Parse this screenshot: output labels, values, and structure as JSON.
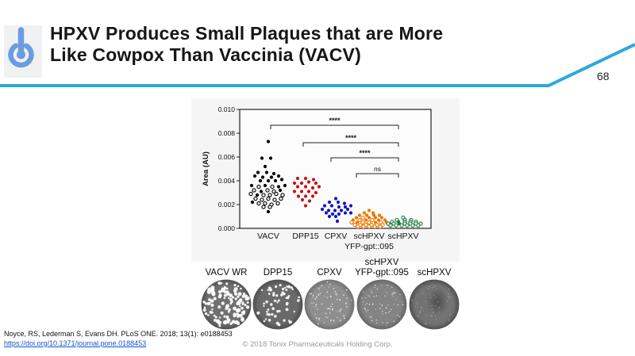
{
  "slide": {
    "title_line1": "HPXV Produces Small Plaques that are More",
    "title_line2": "Like Cowpox Than Vaccinia (VACV)",
    "page_number": "68",
    "accent_color": "#2fa8dc",
    "logo_color": "#6a9ddf"
  },
  "footer": {
    "citation": "Noyce, RS, Lederman S, Evans DH. PLoS ONE. 2018; 13(1): e0188453",
    "link": "https://doi.org/10.1371/journal.pone.0188453",
    "copyright": "© 2018 Tonix Pharmaceuticals Holding Corp."
  },
  "chart_data": {
    "type": "scatter",
    "title": "",
    "xlabel": "",
    "ylabel": "Area (AU)",
    "ylim": [
      0,
      0.01
    ],
    "ytick_step": 0.002,
    "yticks": [
      "0.000",
      "0.002",
      "0.004",
      "0.006",
      "0.008",
      "0.010"
    ],
    "categories": [
      "VACV",
      "DPP15",
      "CPXV",
      "scHPXV",
      "scHPXV"
    ],
    "category_sublabels": [
      "",
      "",
      "",
      "YFP-gpt::095",
      ""
    ],
    "grid": false,
    "legend": false,
    "series": [
      {
        "name": "VACV",
        "color": "#000000",
        "points": [
          [
            0,
            0.0073,
            1
          ],
          [
            -8,
            0.0059,
            1
          ],
          [
            3,
            0.0059,
            1
          ],
          [
            -4,
            0.0052,
            1
          ],
          [
            -13,
            0.0047,
            1
          ],
          [
            -2,
            0.0047,
            1
          ],
          [
            7,
            0.0046,
            1
          ],
          [
            -17,
            0.0044,
            1
          ],
          [
            -7,
            0.0043,
            1
          ],
          [
            4,
            0.0043,
            1
          ],
          [
            13,
            0.0044,
            1
          ],
          [
            -10,
            0.004,
            1
          ],
          [
            0,
            0.004,
            1
          ],
          [
            9,
            0.004,
            1
          ],
          [
            17,
            0.0041,
            1
          ],
          [
            -21,
            0.0036,
            1
          ],
          [
            -12,
            0.0035,
            0
          ],
          [
            -4,
            0.0036,
            1
          ],
          [
            5,
            0.0035,
            0
          ],
          [
            13,
            0.0035,
            1
          ],
          [
            21,
            0.0036,
            1
          ],
          [
            -18,
            0.0032,
            0
          ],
          [
            -9,
            0.0031,
            1
          ],
          [
            -1,
            0.0032,
            0
          ],
          [
            7,
            0.0031,
            0
          ],
          [
            15,
            0.0032,
            1
          ],
          [
            -22,
            0.0029,
            0
          ],
          [
            -14,
            0.0028,
            1
          ],
          [
            -6,
            0.0028,
            0
          ],
          [
            2,
            0.0028,
            0
          ],
          [
            10,
            0.0029,
            0
          ],
          [
            18,
            0.0028,
            0
          ],
          [
            -16,
            0.0025,
            0
          ],
          [
            -8,
            0.0024,
            0
          ],
          [
            0,
            0.0025,
            0
          ],
          [
            8,
            0.0024,
            0
          ],
          [
            16,
            0.0025,
            0
          ],
          [
            -20,
            0.0022,
            1
          ],
          [
            -12,
            0.0021,
            0
          ],
          [
            -4,
            0.0021,
            0
          ],
          [
            4,
            0.002,
            0
          ],
          [
            12,
            0.0021,
            0
          ],
          [
            -6,
            0.0018,
            0
          ],
          [
            2,
            0.0018,
            0
          ],
          [
            0,
            0.0014,
            1
          ]
        ]
      },
      {
        "name": "DPP15",
        "color": "#cc1111",
        "points": [
          [
            -10,
            0.0042,
            1
          ],
          [
            0,
            0.0042,
            1
          ],
          [
            10,
            0.0041,
            1
          ],
          [
            -14,
            0.0038,
            1
          ],
          [
            -5,
            0.0038,
            1
          ],
          [
            4,
            0.0039,
            1
          ],
          [
            13,
            0.0038,
            1
          ],
          [
            -10,
            0.0035,
            1
          ],
          [
            0,
            0.0035,
            1
          ],
          [
            9,
            0.0034,
            1
          ],
          [
            17,
            0.0035,
            1
          ],
          [
            -14,
            0.0031,
            1
          ],
          [
            -5,
            0.0031,
            1
          ],
          [
            4,
            0.0031,
            1
          ],
          [
            13,
            0.003,
            1
          ],
          [
            -9,
            0.0027,
            1
          ],
          [
            0,
            0.0027,
            1
          ],
          [
            9,
            0.0027,
            1
          ],
          [
            -4,
            0.0024,
            1
          ],
          [
            5,
            0.0023,
            1
          ],
          [
            0,
            0.0019,
            1
          ]
        ]
      },
      {
        "name": "CPXV",
        "color": "#1414c8",
        "points": [
          [
            0,
            0.0025,
            1
          ],
          [
            -8,
            0.0022,
            1
          ],
          [
            3,
            0.0022,
            1
          ],
          [
            11,
            0.0021,
            1
          ],
          [
            -14,
            0.0019,
            1
          ],
          [
            -5,
            0.0019,
            1
          ],
          [
            4,
            0.0018,
            1
          ],
          [
            12,
            0.0018,
            1
          ],
          [
            19,
            0.0019,
            1
          ],
          [
            -17,
            0.0016,
            1
          ],
          [
            -9,
            0.0015,
            1
          ],
          [
            -1,
            0.0015,
            1
          ],
          [
            7,
            0.0015,
            1
          ],
          [
            15,
            0.0016,
            1
          ],
          [
            -12,
            0.0013,
            1
          ],
          [
            -4,
            0.0012,
            1
          ],
          [
            4,
            0.0012,
            1
          ],
          [
            12,
            0.0013,
            1
          ],
          [
            19,
            0.0013,
            1
          ],
          [
            -8,
            0.001,
            1
          ],
          [
            0,
            0.001,
            1
          ],
          [
            2,
            0.0006,
            1
          ]
        ]
      },
      {
        "name": "scHPXV YFP-gpt::095",
        "color": "#f07800",
        "points": [
          [
            0,
            0.0015,
            1
          ],
          [
            -6,
            0.0013,
            1
          ],
          [
            5,
            0.0013,
            1
          ],
          [
            -12,
            0.0011,
            1
          ],
          [
            -3,
            0.0011,
            1
          ],
          [
            6,
            0.0011,
            1
          ],
          [
            13,
            0.0011,
            1
          ],
          [
            -16,
            0.0009,
            1
          ],
          [
            -8,
            0.0009,
            0
          ],
          [
            0,
            0.0009,
            1
          ],
          [
            8,
            0.0009,
            1
          ],
          [
            16,
            0.0009,
            1
          ],
          [
            -20,
            0.0007,
            1
          ],
          [
            -12,
            0.0007,
            0
          ],
          [
            -4,
            0.0007,
            1
          ],
          [
            4,
            0.0007,
            0
          ],
          [
            12,
            0.0007,
            1
          ],
          [
            20,
            0.0007,
            1
          ],
          [
            -22,
            0.0005,
            0
          ],
          [
            -15,
            0.0005,
            1
          ],
          [
            -8,
            0.0005,
            0
          ],
          [
            0,
            0.0005,
            0
          ],
          [
            8,
            0.0005,
            1
          ],
          [
            15,
            0.0005,
            0
          ],
          [
            22,
            0.0005,
            1
          ],
          [
            -18,
            0.0003,
            0
          ],
          [
            -11,
            0.0003,
            0
          ],
          [
            -4,
            0.0003,
            0
          ],
          [
            3,
            0.0003,
            0
          ],
          [
            10,
            0.0003,
            0
          ],
          [
            17,
            0.0003,
            0
          ],
          [
            -14,
            0.00015,
            0
          ],
          [
            -7,
            0.00015,
            0
          ],
          [
            0,
            0.00015,
            0
          ],
          [
            7,
            0.00015,
            0
          ],
          [
            14,
            0.00015,
            0
          ]
        ]
      },
      {
        "name": "scHPXV",
        "color": "#1e7a40",
        "points": [
          [
            0,
            0.0009,
            0
          ],
          [
            -8,
            0.0007,
            0
          ],
          [
            2,
            0.0007,
            0
          ],
          [
            10,
            0.0007,
            0
          ],
          [
            -14,
            0.00055,
            0
          ],
          [
            -6,
            0.00055,
            1
          ],
          [
            2,
            0.00055,
            0
          ],
          [
            9,
            0.00055,
            0
          ],
          [
            16,
            0.00055,
            0
          ],
          [
            -19,
            0.0004,
            0
          ],
          [
            -12,
            0.0004,
            0
          ],
          [
            -5,
            0.0004,
            1
          ],
          [
            2,
            0.0004,
            0
          ],
          [
            9,
            0.0004,
            0
          ],
          [
            16,
            0.0004,
            0
          ],
          [
            22,
            0.0004,
            0
          ],
          [
            -16,
            0.00025,
            0
          ],
          [
            -9,
            0.00025,
            0
          ],
          [
            -2,
            0.00025,
            0
          ],
          [
            5,
            0.00025,
            0
          ],
          [
            12,
            0.00025,
            0
          ],
          [
            19,
            0.00025,
            0
          ]
        ]
      }
    ],
    "significance": [
      {
        "from": 0,
        "to": 4,
        "label": "****"
      },
      {
        "from": 1,
        "to": 4,
        "label": "****"
      },
      {
        "from": 2,
        "to": 4,
        "label": "****"
      },
      {
        "from": 3,
        "to": 4,
        "label": "ns"
      }
    ]
  },
  "plaque_row": {
    "dishes": [
      {
        "label_lines": [
          "VACV WR"
        ],
        "center_shade": "#707070",
        "edge_shade": "#545454",
        "plaque_count": 120,
        "plaque_rmin": 1.2,
        "plaque_rmax": 2.7,
        "plaque_color": "#ffffff",
        "plaque_opacity": 0.92,
        "smudge": false
      },
      {
        "label_lines": [
          "DPP15"
        ],
        "center_shade": "#6a6a6a",
        "edge_shade": "#515151",
        "plaque_count": 55,
        "plaque_rmin": 1.1,
        "plaque_rmax": 2.1,
        "plaque_color": "#ffffff",
        "plaque_opacity": 0.9,
        "smudge": false
      },
      {
        "label_lines": [
          "CPXV"
        ],
        "center_shade": "#8f8f8f",
        "edge_shade": "#737373",
        "plaque_count": 72,
        "plaque_rmin": 0.5,
        "plaque_rmax": 1.0,
        "plaque_color": "#efefef",
        "plaque_opacity": 0.85,
        "smudge": false
      },
      {
        "label_lines": [
          "scHPXV",
          "YFP-gpt::095"
        ],
        "center_shade": "#848484",
        "edge_shade": "#686868",
        "plaque_count": 65,
        "plaque_rmin": 0.5,
        "plaque_rmax": 0.9,
        "plaque_color": "#e9e9e9",
        "plaque_opacity": 0.8,
        "smudge": false
      },
      {
        "label_lines": [
          "scHPXV"
        ],
        "center_shade": "#737373",
        "edge_shade": "#525252",
        "plaque_count": 55,
        "plaque_rmin": 0.4,
        "plaque_rmax": 0.8,
        "plaque_color": "#cfcfcf",
        "plaque_opacity": 0.6,
        "smudge": true
      }
    ]
  }
}
